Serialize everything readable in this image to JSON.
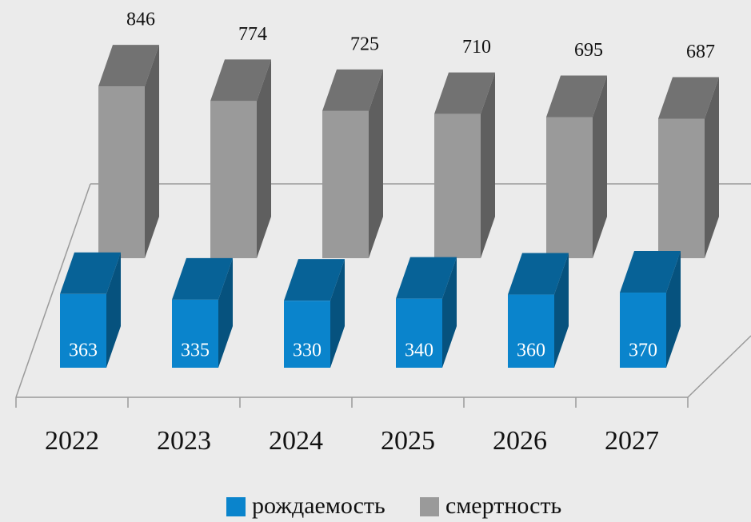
{
  "chart_data": {
    "type": "bar3d",
    "categories": [
      "2022",
      "2023",
      "2024",
      "2025",
      "2026",
      "2027"
    ],
    "series": [
      {
        "name": "рождаемость",
        "color": "#0a84cc",
        "values": [
          363,
          335,
          330,
          340,
          360,
          370
        ]
      },
      {
        "name": "смертность",
        "color": "#9a9a9a",
        "values": [
          846,
          774,
          725,
          710,
          695,
          687
        ]
      }
    ]
  }
}
